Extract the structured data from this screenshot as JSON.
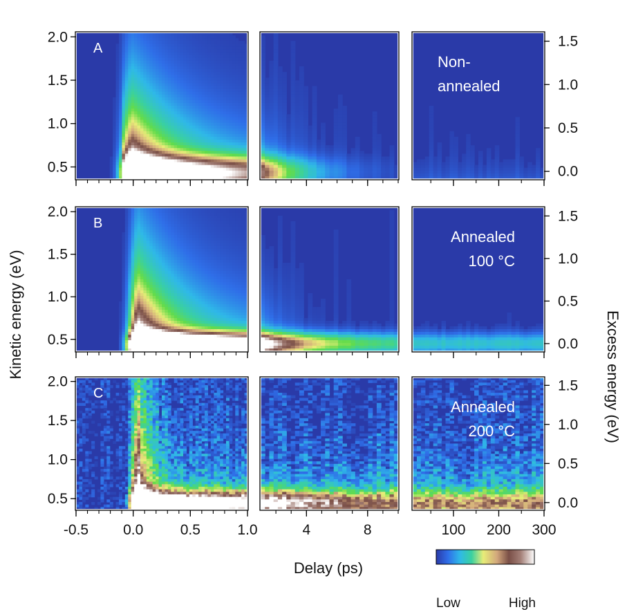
{
  "chart_data": {
    "type": "heatmap",
    "colormap": [
      "#2a3aa8",
      "#2f6ee8",
      "#2fb8e8",
      "#3ad0a0",
      "#63dc4a",
      "#e8ec78",
      "#d2a77c",
      "#7a4f47",
      "#a37f77",
      "#ffffff"
    ],
    "xlabel": "Delay (ps)",
    "ylabel_left": "Kinetic energy (eV)",
    "ylabel_right": "Excess energy (eV)",
    "y_range_ev": [
      0.36,
      2.05
    ],
    "excess_offset_ev": 0.45,
    "y_ticks_left": [
      "2.0",
      "1.5",
      "1.0",
      "0.5"
    ],
    "y_ticks_right": [
      "1.5",
      "1.0",
      "0.5",
      "0.0"
    ],
    "segments": [
      {
        "xlim": [
          -0.5,
          1.0
        ],
        "ticks": [
          "-0.5",
          "0.0",
          "0.5",
          "1.0"
        ]
      },
      {
        "xlim": [
          1.0,
          10.0
        ],
        "ticks": [
          "4",
          "8"
        ]
      },
      {
        "xlim": [
          10,
          300
        ],
        "ticks": [
          "100",
          "200",
          "300"
        ]
      }
    ],
    "panels": [
      {
        "label": "A",
        "annotation": [
          "Non-",
          "annealed"
        ],
        "peak_delay_ps": 0.0
      },
      {
        "label": "B",
        "annotation": [
          "Annealed",
          "100 °C"
        ],
        "peak_delay_ps": 0.05
      },
      {
        "label": "C",
        "annotation": [
          "Annealed",
          "200 °C"
        ],
        "peak_delay_ps": 0.05
      }
    ],
    "colorbar": {
      "low": "Low",
      "high": "High"
    }
  }
}
